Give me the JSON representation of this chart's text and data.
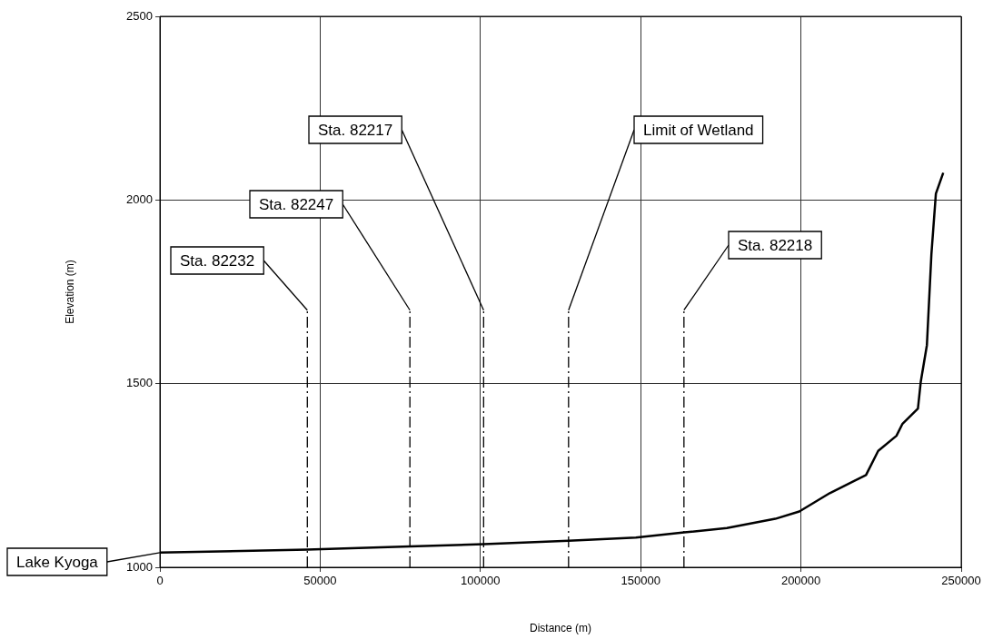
{
  "chart_data": {
    "type": "line",
    "xlabel": "Distance (m)",
    "ylabel": "Elevation (m)",
    "x": [
      0,
      46000,
      78000,
      101000,
      127500,
      148500,
      163600,
      176900,
      192000,
      199500,
      209000,
      216600,
      220300,
      224100,
      229800,
      231700,
      236500,
      237400,
      239300,
      240700,
      242100,
      244400
    ],
    "series": [
      {
        "color": "#000000",
        "values": [
          1040,
          1048,
          1057,
          1063,
          1072,
          1081,
          1095,
          1107,
          1132,
          1152,
          1202,
          1235,
          1251,
          1317,
          1358,
          1391,
          1432,
          1506,
          1605,
          1852,
          2017,
          2074
        ]
      },
      {
        "color": "#000000",
        "line_style": "dashed",
        "x": [
          46000,
          46000
        ],
        "values": [
          1000,
          1700
        ]
      },
      {
        "color": "#000000",
        "line_style": "dashed",
        "x": [
          78000,
          78000
        ],
        "values": [
          1000,
          1700
        ]
      },
      {
        "color": "#000000",
        "line_style": "dashed",
        "x": [
          101000,
          101000
        ],
        "values": [
          1000,
          1700
        ]
      },
      {
        "color": "#000000",
        "line_style": "dashed",
        "x": [
          127500,
          127500
        ],
        "values": [
          1000,
          1700
        ]
      },
      {
        "color": "#000000",
        "line_style": "dashed",
        "x": [
          163500,
          163500
        ],
        "values": [
          1000,
          1700
        ]
      }
    ],
    "xlim": [
      0,
      250000
    ],
    "xticks": [
      0,
      50000,
      100000,
      150000,
      200000,
      250000
    ],
    "ylim": [
      1000,
      2500
    ],
    "yticks": [
      1000,
      1500,
      2000,
      2500
    ],
    "grid": true,
    "legend": false,
    "marker": "none",
    "line_style": "solid",
    "annotations": [
      {
        "text": "Lake Kyoga",
        "x": 0,
        "y": 1040
      },
      {
        "text": "Sta. 82232",
        "x": 46000,
        "y": 1700
      },
      {
        "text": "Sta. 82247",
        "x": 78000,
        "y": 1700
      },
      {
        "text": "Sta. 82217",
        "x": 101000,
        "y": 1700
      },
      {
        "text": "Limit of Wetland",
        "x": 127500,
        "y": 1700
      },
      {
        "text": "Sta. 82218",
        "x": 163500,
        "y": 1700
      }
    ]
  }
}
